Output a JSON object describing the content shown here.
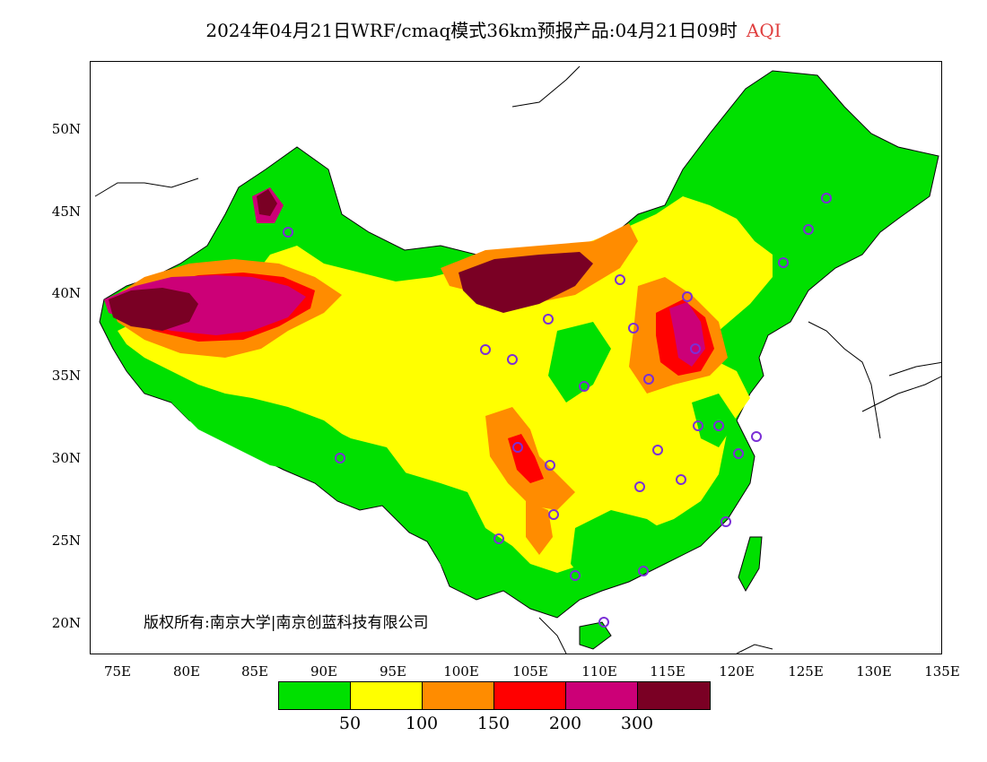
{
  "title": {
    "main": "2024年04月21日WRF/cmaq模式36km预报产品:04月21日09时",
    "variable": "AQI"
  },
  "axes": {
    "latitude_labels": [
      "50N",
      "45N",
      "40N",
      "35N",
      "30N",
      "25N",
      "20N"
    ],
    "longitude_labels": [
      "75E",
      "80E",
      "85E",
      "90E",
      "95E",
      "100E",
      "105E",
      "110E",
      "115E",
      "120E",
      "125E",
      "130E",
      "135E"
    ]
  },
  "copyright": "版权所有:南京大学|南京创蓝科技有限公司",
  "legend": {
    "colors": [
      "#00e000",
      "#ffff00",
      "#ff8c00",
      "#ff0000",
      "#cc0077",
      "#7a0024"
    ],
    "labels": [
      "50",
      "100",
      "150",
      "200",
      "300"
    ]
  },
  "map_colors": {
    "green": "#00e000",
    "yellow": "#ffff00",
    "orange": "#ff8c00",
    "red": "#ff0000",
    "magenta": "#cc0077",
    "maroon": "#7a0024",
    "station_marker": "#7b2fd6"
  }
}
